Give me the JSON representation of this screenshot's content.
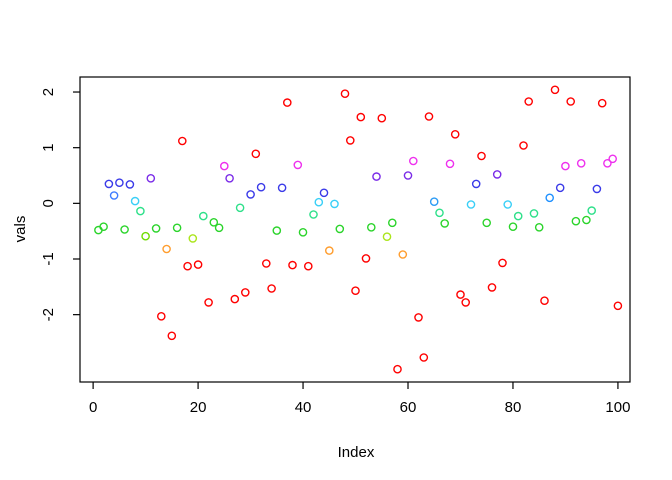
{
  "figure": {
    "background": "#FFFFFF",
    "axis_color": "#000000"
  },
  "chart_data": {
    "type": "scatter",
    "title": "",
    "xlabel": "Index",
    "ylabel": "vals",
    "marker_style": "open-circle",
    "grid": false,
    "legend": "none",
    "x_ticks": [
      0,
      20,
      40,
      60,
      80,
      100
    ],
    "y_ticks": [
      -2,
      -1,
      0,
      1,
      2
    ],
    "xlim": [
      -2.5,
      102.3
    ],
    "ylim": [
      -3.21,
      2.27
    ],
    "point_format": [
      "index",
      "value",
      "color"
    ],
    "points": [
      [
        1,
        -0.48,
        "#2BD42B"
      ],
      [
        2,
        -0.42,
        "#2BD42B"
      ],
      [
        3,
        0.35,
        "#3A3AE8"
      ],
      [
        4,
        0.14,
        "#3E7BFF"
      ],
      [
        5,
        0.37,
        "#3A3AE8"
      ],
      [
        6,
        -0.47,
        "#2BD42B"
      ],
      [
        7,
        0.34,
        "#3A3AE8"
      ],
      [
        8,
        0.04,
        "#39CFF7"
      ],
      [
        9,
        -0.14,
        "#2EE08A"
      ],
      [
        10,
        -0.59,
        "#6EDC00"
      ],
      [
        11,
        0.45,
        "#7A2BE8"
      ],
      [
        12,
        -0.45,
        "#2BD42B"
      ],
      [
        13,
        -2.03,
        "#FF0000"
      ],
      [
        14,
        -0.82,
        "#FF9D2E"
      ],
      [
        15,
        -2.38,
        "#FF0000"
      ],
      [
        16,
        -0.44,
        "#2BD42B"
      ],
      [
        17,
        1.12,
        "#FF0000"
      ],
      [
        18,
        -1.13,
        "#FF0000"
      ],
      [
        19,
        -0.63,
        "#ABE51C"
      ],
      [
        20,
        -1.1,
        "#FF0000"
      ],
      [
        21,
        -0.23,
        "#2EE08A"
      ],
      [
        22,
        -1.78,
        "#FF0000"
      ],
      [
        23,
        -0.34,
        "#2BD42B"
      ],
      [
        24,
        -0.44,
        "#2BD42B"
      ],
      [
        25,
        0.67,
        "#EE30EE"
      ],
      [
        26,
        0.45,
        "#7A2BE8"
      ],
      [
        27,
        -1.72,
        "#FF0000"
      ],
      [
        28,
        -0.08,
        "#2EE08A"
      ],
      [
        29,
        -1.6,
        "#FF0000"
      ],
      [
        30,
        0.16,
        "#3A3AE8"
      ],
      [
        31,
        0.89,
        "#FF0000"
      ],
      [
        32,
        0.29,
        "#3A3AE8"
      ],
      [
        33,
        -1.08,
        "#FF0000"
      ],
      [
        34,
        -1.53,
        "#FF0000"
      ],
      [
        35,
        -0.49,
        "#2BD42B"
      ],
      [
        36,
        0.28,
        "#3A3AE8"
      ],
      [
        37,
        1.81,
        "#FF0000"
      ],
      [
        38,
        -1.11,
        "#FF0000"
      ],
      [
        39,
        0.69,
        "#EE30EE"
      ],
      [
        40,
        -0.52,
        "#2BD42B"
      ],
      [
        41,
        -1.13,
        "#FF0000"
      ],
      [
        42,
        -0.2,
        "#2EE08A"
      ],
      [
        43,
        0.02,
        "#39CFF7"
      ],
      [
        44,
        0.19,
        "#3A3AE8"
      ],
      [
        45,
        -0.85,
        "#FF9D2E"
      ],
      [
        46,
        -0.01,
        "#39CFF7"
      ],
      [
        47,
        -0.46,
        "#2BD42B"
      ],
      [
        48,
        1.97,
        "#FF0000"
      ],
      [
        49,
        1.13,
        "#FF0000"
      ],
      [
        50,
        -1.57,
        "#FF0000"
      ],
      [
        51,
        1.55,
        "#FF0000"
      ],
      [
        52,
        -0.99,
        "#FF0000"
      ],
      [
        53,
        -0.43,
        "#2BD42B"
      ],
      [
        54,
        0.48,
        "#7A2BE8"
      ],
      [
        55,
        1.53,
        "#FF0000"
      ],
      [
        56,
        -0.6,
        "#ABE51C"
      ],
      [
        57,
        -0.35,
        "#2BD42B"
      ],
      [
        58,
        -2.98,
        "#FF0000"
      ],
      [
        59,
        -0.92,
        "#FF9D2E"
      ],
      [
        60,
        0.5,
        "#7A2BE8"
      ],
      [
        61,
        0.76,
        "#EE30EE"
      ],
      [
        62,
        -2.05,
        "#FF0000"
      ],
      [
        63,
        -2.77,
        "#FF0000"
      ],
      [
        64,
        1.56,
        "#FF0000"
      ],
      [
        65,
        0.03,
        "#2B9BF5"
      ],
      [
        66,
        -0.17,
        "#2EE08A"
      ],
      [
        67,
        -0.36,
        "#2BD42B"
      ],
      [
        68,
        0.71,
        "#EE30EE"
      ],
      [
        69,
        1.24,
        "#FF0000"
      ],
      [
        70,
        -1.64,
        "#FF0000"
      ],
      [
        71,
        -1.78,
        "#FF0000"
      ],
      [
        72,
        -0.02,
        "#39CFF7"
      ],
      [
        73,
        0.35,
        "#3A3AE8"
      ],
      [
        74,
        0.85,
        "#FF0000"
      ],
      [
        75,
        -0.35,
        "#2BD42B"
      ],
      [
        76,
        -1.51,
        "#FF0000"
      ],
      [
        77,
        0.52,
        "#7A2BE8"
      ],
      [
        78,
        -1.07,
        "#FF0000"
      ],
      [
        79,
        -0.02,
        "#39CFF7"
      ],
      [
        80,
        -0.42,
        "#2BD42B"
      ],
      [
        81,
        -0.23,
        "#2EE08A"
      ],
      [
        82,
        1.04,
        "#FF0000"
      ],
      [
        83,
        1.83,
        "#FF0000"
      ],
      [
        84,
        -0.18,
        "#2EE08A"
      ],
      [
        85,
        -0.43,
        "#2BD42B"
      ],
      [
        86,
        -1.75,
        "#FF0000"
      ],
      [
        87,
        0.1,
        "#1E90FF"
      ],
      [
        88,
        2.04,
        "#FF0000"
      ],
      [
        89,
        0.28,
        "#3A3AE8"
      ],
      [
        90,
        0.67,
        "#EE30EE"
      ],
      [
        91,
        1.83,
        "#FF0000"
      ],
      [
        92,
        -0.32,
        "#2BD42B"
      ],
      [
        93,
        0.72,
        "#EE30EE"
      ],
      [
        94,
        -0.3,
        "#2BD42B"
      ],
      [
        95,
        -0.13,
        "#2EE08A"
      ],
      [
        96,
        0.26,
        "#3A3AE8"
      ],
      [
        97,
        1.8,
        "#FF0000"
      ],
      [
        98,
        0.72,
        "#EE30EE"
      ],
      [
        99,
        0.8,
        "#EE30EE"
      ],
      [
        100,
        -1.84,
        "#FF0000"
      ]
    ]
  }
}
